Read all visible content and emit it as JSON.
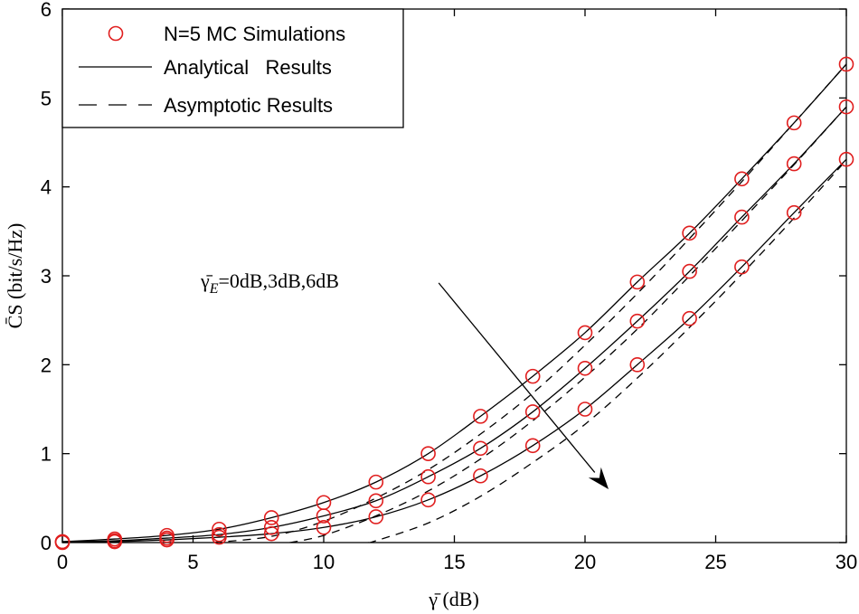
{
  "chart_data": {
    "type": "line",
    "xlabel": "γ̄ (dB)",
    "ylabel": "C̄S (bit/s/Hz)",
    "xlim": [
      0,
      30
    ],
    "ylim": [
      0,
      6
    ],
    "xticks": [
      0,
      5,
      10,
      15,
      20,
      25,
      30
    ],
    "yticks": [
      0,
      1,
      2,
      3,
      4,
      5,
      6
    ],
    "grid": false,
    "legend_position": "top-left",
    "legend": [
      {
        "label": "N=5 MC Simulations",
        "style": "red-circle-marker"
      },
      {
        "label": "Analytical   Results",
        "style": "solid-line"
      },
      {
        "label": "Asymptotic Results",
        "style": "dashed-line"
      }
    ],
    "annotation": {
      "text_main": "γ̄",
      "text_sub": "E",
      "text_rest": "=0dB,3dB,6dB",
      "arrow_from": [
        14.4,
        2.92
      ],
      "arrow_to": [
        20.9,
        0.6
      ]
    },
    "series": [
      {
        "name": "γ̄E=0dB simulations",
        "kind": "markers",
        "x": [
          0,
          2,
          4,
          6,
          8,
          10,
          12,
          14,
          16,
          18,
          20,
          22,
          24,
          26,
          28,
          30
        ],
        "y": [
          0.01,
          0.04,
          0.08,
          0.15,
          0.28,
          0.45,
          0.68,
          1.0,
          1.42,
          1.87,
          2.36,
          2.93,
          3.48,
          4.09,
          4.72,
          5.38
        ]
      },
      {
        "name": "γ̄E=3dB simulations",
        "kind": "markers",
        "x": [
          0,
          2,
          4,
          6,
          8,
          10,
          12,
          14,
          16,
          18,
          20,
          22,
          24,
          26,
          28,
          30
        ],
        "y": [
          0.01,
          0.02,
          0.05,
          0.09,
          0.17,
          0.3,
          0.47,
          0.74,
          1.06,
          1.47,
          1.96,
          2.49,
          3.05,
          3.66,
          4.26,
          4.9
        ]
      },
      {
        "name": "γ̄E=6dB simulations",
        "kind": "markers",
        "x": [
          0,
          2,
          4,
          6,
          8,
          10,
          12,
          14,
          16,
          18,
          20,
          22,
          24,
          26,
          28,
          30
        ],
        "y": [
          0.0,
          0.01,
          0.03,
          0.06,
          0.1,
          0.17,
          0.29,
          0.48,
          0.75,
          1.09,
          1.5,
          2.0,
          2.52,
          3.1,
          3.71,
          4.31
        ]
      },
      {
        "name": "γ̄E=0dB analytical",
        "kind": "solid",
        "x": [
          0,
          2,
          4,
          6,
          8,
          10,
          12,
          14,
          16,
          18,
          20,
          22,
          24,
          26,
          28,
          30
        ],
        "y": [
          0.01,
          0.04,
          0.08,
          0.15,
          0.28,
          0.45,
          0.68,
          1.0,
          1.42,
          1.87,
          2.36,
          2.93,
          3.48,
          4.09,
          4.72,
          5.38
        ]
      },
      {
        "name": "γ̄E=3dB analytical",
        "kind": "solid",
        "x": [
          0,
          2,
          4,
          6,
          8,
          10,
          12,
          14,
          16,
          18,
          20,
          22,
          24,
          26,
          28,
          30
        ],
        "y": [
          0.01,
          0.02,
          0.05,
          0.09,
          0.17,
          0.3,
          0.47,
          0.74,
          1.06,
          1.47,
          1.96,
          2.49,
          3.05,
          3.66,
          4.26,
          4.9
        ]
      },
      {
        "name": "γ̄E=6dB analytical",
        "kind": "solid",
        "x": [
          0,
          2,
          4,
          6,
          8,
          10,
          12,
          14,
          16,
          18,
          20,
          22,
          24,
          26,
          28,
          30
        ],
        "y": [
          0.0,
          0.01,
          0.03,
          0.06,
          0.1,
          0.17,
          0.29,
          0.48,
          0.75,
          1.09,
          1.5,
          2.0,
          2.52,
          3.1,
          3.71,
          4.31
        ]
      },
      {
        "name": "γ̄E=0dB asymptotic",
        "kind": "dashed",
        "x": [
          5.8,
          8,
          10,
          12,
          14,
          16,
          18,
          20,
          22,
          24,
          26,
          28,
          30
        ],
        "y": [
          0.0,
          0.07,
          0.24,
          0.5,
          0.82,
          1.22,
          1.68,
          2.22,
          2.8,
          3.42,
          4.06,
          4.72,
          5.38
        ]
      },
      {
        "name": "γ̄E=3dB asymptotic",
        "kind": "dashed",
        "x": [
          8.7,
          10,
          12,
          14,
          16,
          18,
          20,
          22,
          24,
          26,
          28,
          30
        ],
        "y": [
          0.0,
          0.08,
          0.3,
          0.58,
          0.94,
          1.37,
          1.86,
          2.4,
          3.0,
          3.62,
          4.25,
          4.9
        ]
      },
      {
        "name": "γ̄E=6dB asymptotic",
        "kind": "dashed",
        "x": [
          11.7,
          12,
          14,
          16,
          18,
          20,
          22,
          24,
          26,
          28,
          30
        ],
        "y": [
          0.0,
          0.02,
          0.22,
          0.52,
          0.9,
          1.33,
          1.85,
          2.42,
          3.02,
          3.65,
          4.3
        ]
      }
    ]
  }
}
